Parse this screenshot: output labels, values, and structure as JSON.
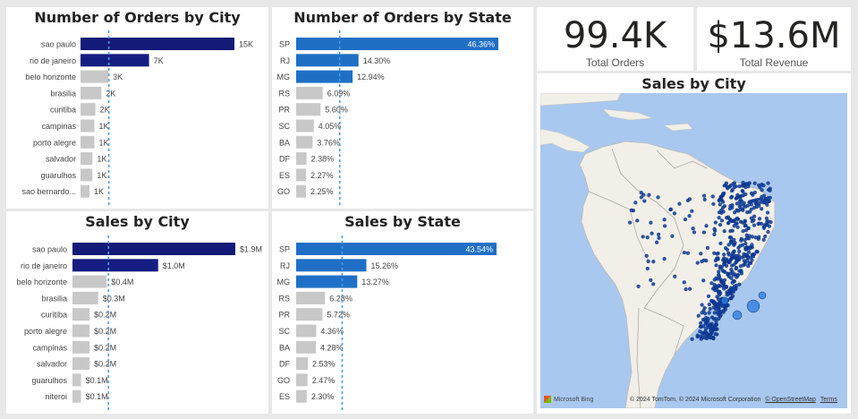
{
  "colors": {
    "top1": "#131a78",
    "top2": "#151d82",
    "state": "#1f6fc6",
    "other": "#c8c8c8",
    "ref": "#4a9be8",
    "map_land": "#f1efe8",
    "map_sea": "#a9c8ef",
    "dot": "#0d3d9c"
  },
  "kpis": {
    "orders": {
      "value": "99.4K",
      "label": "Total Orders"
    },
    "revenue": {
      "value": "$13.6M",
      "label": "Total Revenue"
    }
  },
  "map": {
    "title": "Sales by City",
    "logo": "Microsoft Bing",
    "attribution": "© 2024 TomTom, © 2024 Microsoft Corporation",
    "osm_link": "© OpenStreetMap",
    "terms_link": "Terms"
  },
  "chart_data": [
    {
      "id": "orders_city",
      "type": "bar",
      "title": "Number of Orders by City",
      "categories": [
        "sao paulo",
        "rio de janeiro",
        "belo horizonte",
        "brasilia",
        "curitiba",
        "campinas",
        "porto alegre",
        "salvador",
        "guarulhos",
        "sao bernardo..."
      ],
      "values": [
        15500,
        6900,
        2800,
        2100,
        1500,
        1400,
        1400,
        1200,
        1200,
        900
      ],
      "labels": [
        "15K",
        "7K",
        "3K",
        "2K",
        "2K",
        "1K",
        "1K",
        "1K",
        "1K",
        "1K"
      ],
      "reference_line": 2850
    },
    {
      "id": "orders_state",
      "type": "bar",
      "title": "Number of Orders by State",
      "categories": [
        "SP",
        "RJ",
        "MG",
        "RS",
        "PR",
        "SC",
        "BA",
        "DF",
        "ES",
        "GO"
      ],
      "values": [
        46.36,
        14.3,
        12.94,
        6.09,
        5.6,
        4.05,
        3.76,
        2.38,
        2.27,
        2.25
      ],
      "labels": [
        "46.36%",
        "14.30%",
        "12.94%",
        "6.09%",
        "5.60%",
        "4.05%",
        "3.76%",
        "2.38%",
        "2.27%",
        "2.25%"
      ],
      "reference_line": 10.0
    },
    {
      "id": "sales_city",
      "type": "bar",
      "title": "Sales by City",
      "categories": [
        "sao paulo",
        "rio de janeiro",
        "belo horizonte",
        "brasilia",
        "curitiba",
        "porto alegre",
        "campinas",
        "salvador",
        "guarulhos",
        "niteroi"
      ],
      "values": [
        1.9,
        1.0,
        0.4,
        0.3,
        0.2,
        0.2,
        0.2,
        0.2,
        0.1,
        0.1
      ],
      "labels": [
        "$1.9M",
        "$1.0M",
        "$0.4M",
        "$0.3M",
        "$0.2M",
        "$0.2M",
        "$0.2M",
        "$0.2M",
        "$0.1M",
        "$0.1M"
      ],
      "reference_line": 0.42
    },
    {
      "id": "sales_state",
      "type": "bar",
      "title": "Sales by State",
      "categories": [
        "SP",
        "RJ",
        "MG",
        "RS",
        "PR",
        "SC",
        "BA",
        "DF",
        "GO",
        "ES"
      ],
      "values": [
        43.54,
        15.26,
        13.27,
        6.28,
        5.72,
        4.36,
        4.28,
        2.53,
        2.47,
        2.3
      ],
      "labels": [
        "43.54%",
        "15.26%",
        "13.27%",
        "6.28%",
        "5.72%",
        "4.36%",
        "4.28%",
        "2.53%",
        "2.47%",
        "2.30%"
      ],
      "reference_line": 10.0
    }
  ]
}
